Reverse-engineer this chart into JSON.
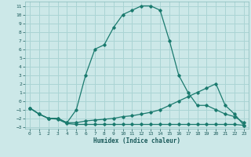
{
  "xlabel": "Humidex (Indice chaleur)",
  "bg_color": "#cce8e8",
  "grid_color": "#aad4d4",
  "line_color": "#1a7a6e",
  "xlim": [
    -0.5,
    23.5
  ],
  "ylim": [
    -3.2,
    11.5
  ],
  "xticks": [
    0,
    1,
    2,
    3,
    4,
    5,
    6,
    7,
    8,
    9,
    10,
    11,
    12,
    13,
    14,
    15,
    16,
    17,
    18,
    19,
    20,
    21,
    22,
    23
  ],
  "yticks": [
    -3,
    -2,
    -1,
    0,
    1,
    2,
    3,
    4,
    5,
    6,
    7,
    8,
    9,
    10,
    11
  ],
  "line1_x": [
    0,
    1,
    2,
    3,
    4,
    5,
    6,
    7,
    8,
    9,
    10,
    11,
    12,
    13,
    14,
    15,
    16,
    17,
    18,
    19,
    20,
    21,
    22,
    23
  ],
  "line1_y": [
    -0.8,
    -1.5,
    -2.0,
    -2.0,
    -2.5,
    -1.0,
    3.0,
    6.0,
    6.5,
    8.5,
    10.0,
    10.5,
    11.0,
    11.0,
    10.5,
    7.0,
    3.0,
    1.0,
    -0.5,
    -0.5,
    -1.0,
    -1.5,
    -1.8,
    -2.5
  ],
  "line2_x": [
    0,
    1,
    2,
    3,
    4,
    5,
    6,
    7,
    8,
    9,
    10,
    11,
    12,
    13,
    14,
    15,
    16,
    17,
    18,
    19,
    20,
    21,
    22,
    23
  ],
  "line2_y": [
    -0.8,
    -1.5,
    -2.0,
    -2.0,
    -2.5,
    -2.5,
    -2.3,
    -2.2,
    -2.1,
    -2.0,
    -1.8,
    -1.7,
    -1.5,
    -1.3,
    -1.0,
    -0.5,
    0.0,
    0.5,
    1.0,
    1.5,
    2.0,
    -0.5,
    -1.5,
    -2.8
  ],
  "line3_x": [
    0,
    1,
    2,
    3,
    4,
    5,
    6,
    7,
    8,
    9,
    10,
    11,
    12,
    13,
    14,
    15,
    16,
    17,
    18,
    19,
    20,
    21,
    22,
    23
  ],
  "line3_y": [
    -0.8,
    -1.5,
    -2.0,
    -2.1,
    -2.6,
    -2.7,
    -2.7,
    -2.7,
    -2.7,
    -2.7,
    -2.7,
    -2.7,
    -2.7,
    -2.7,
    -2.7,
    -2.7,
    -2.7,
    -2.7,
    -2.7,
    -2.7,
    -2.7,
    -2.7,
    -2.7,
    -2.8
  ]
}
